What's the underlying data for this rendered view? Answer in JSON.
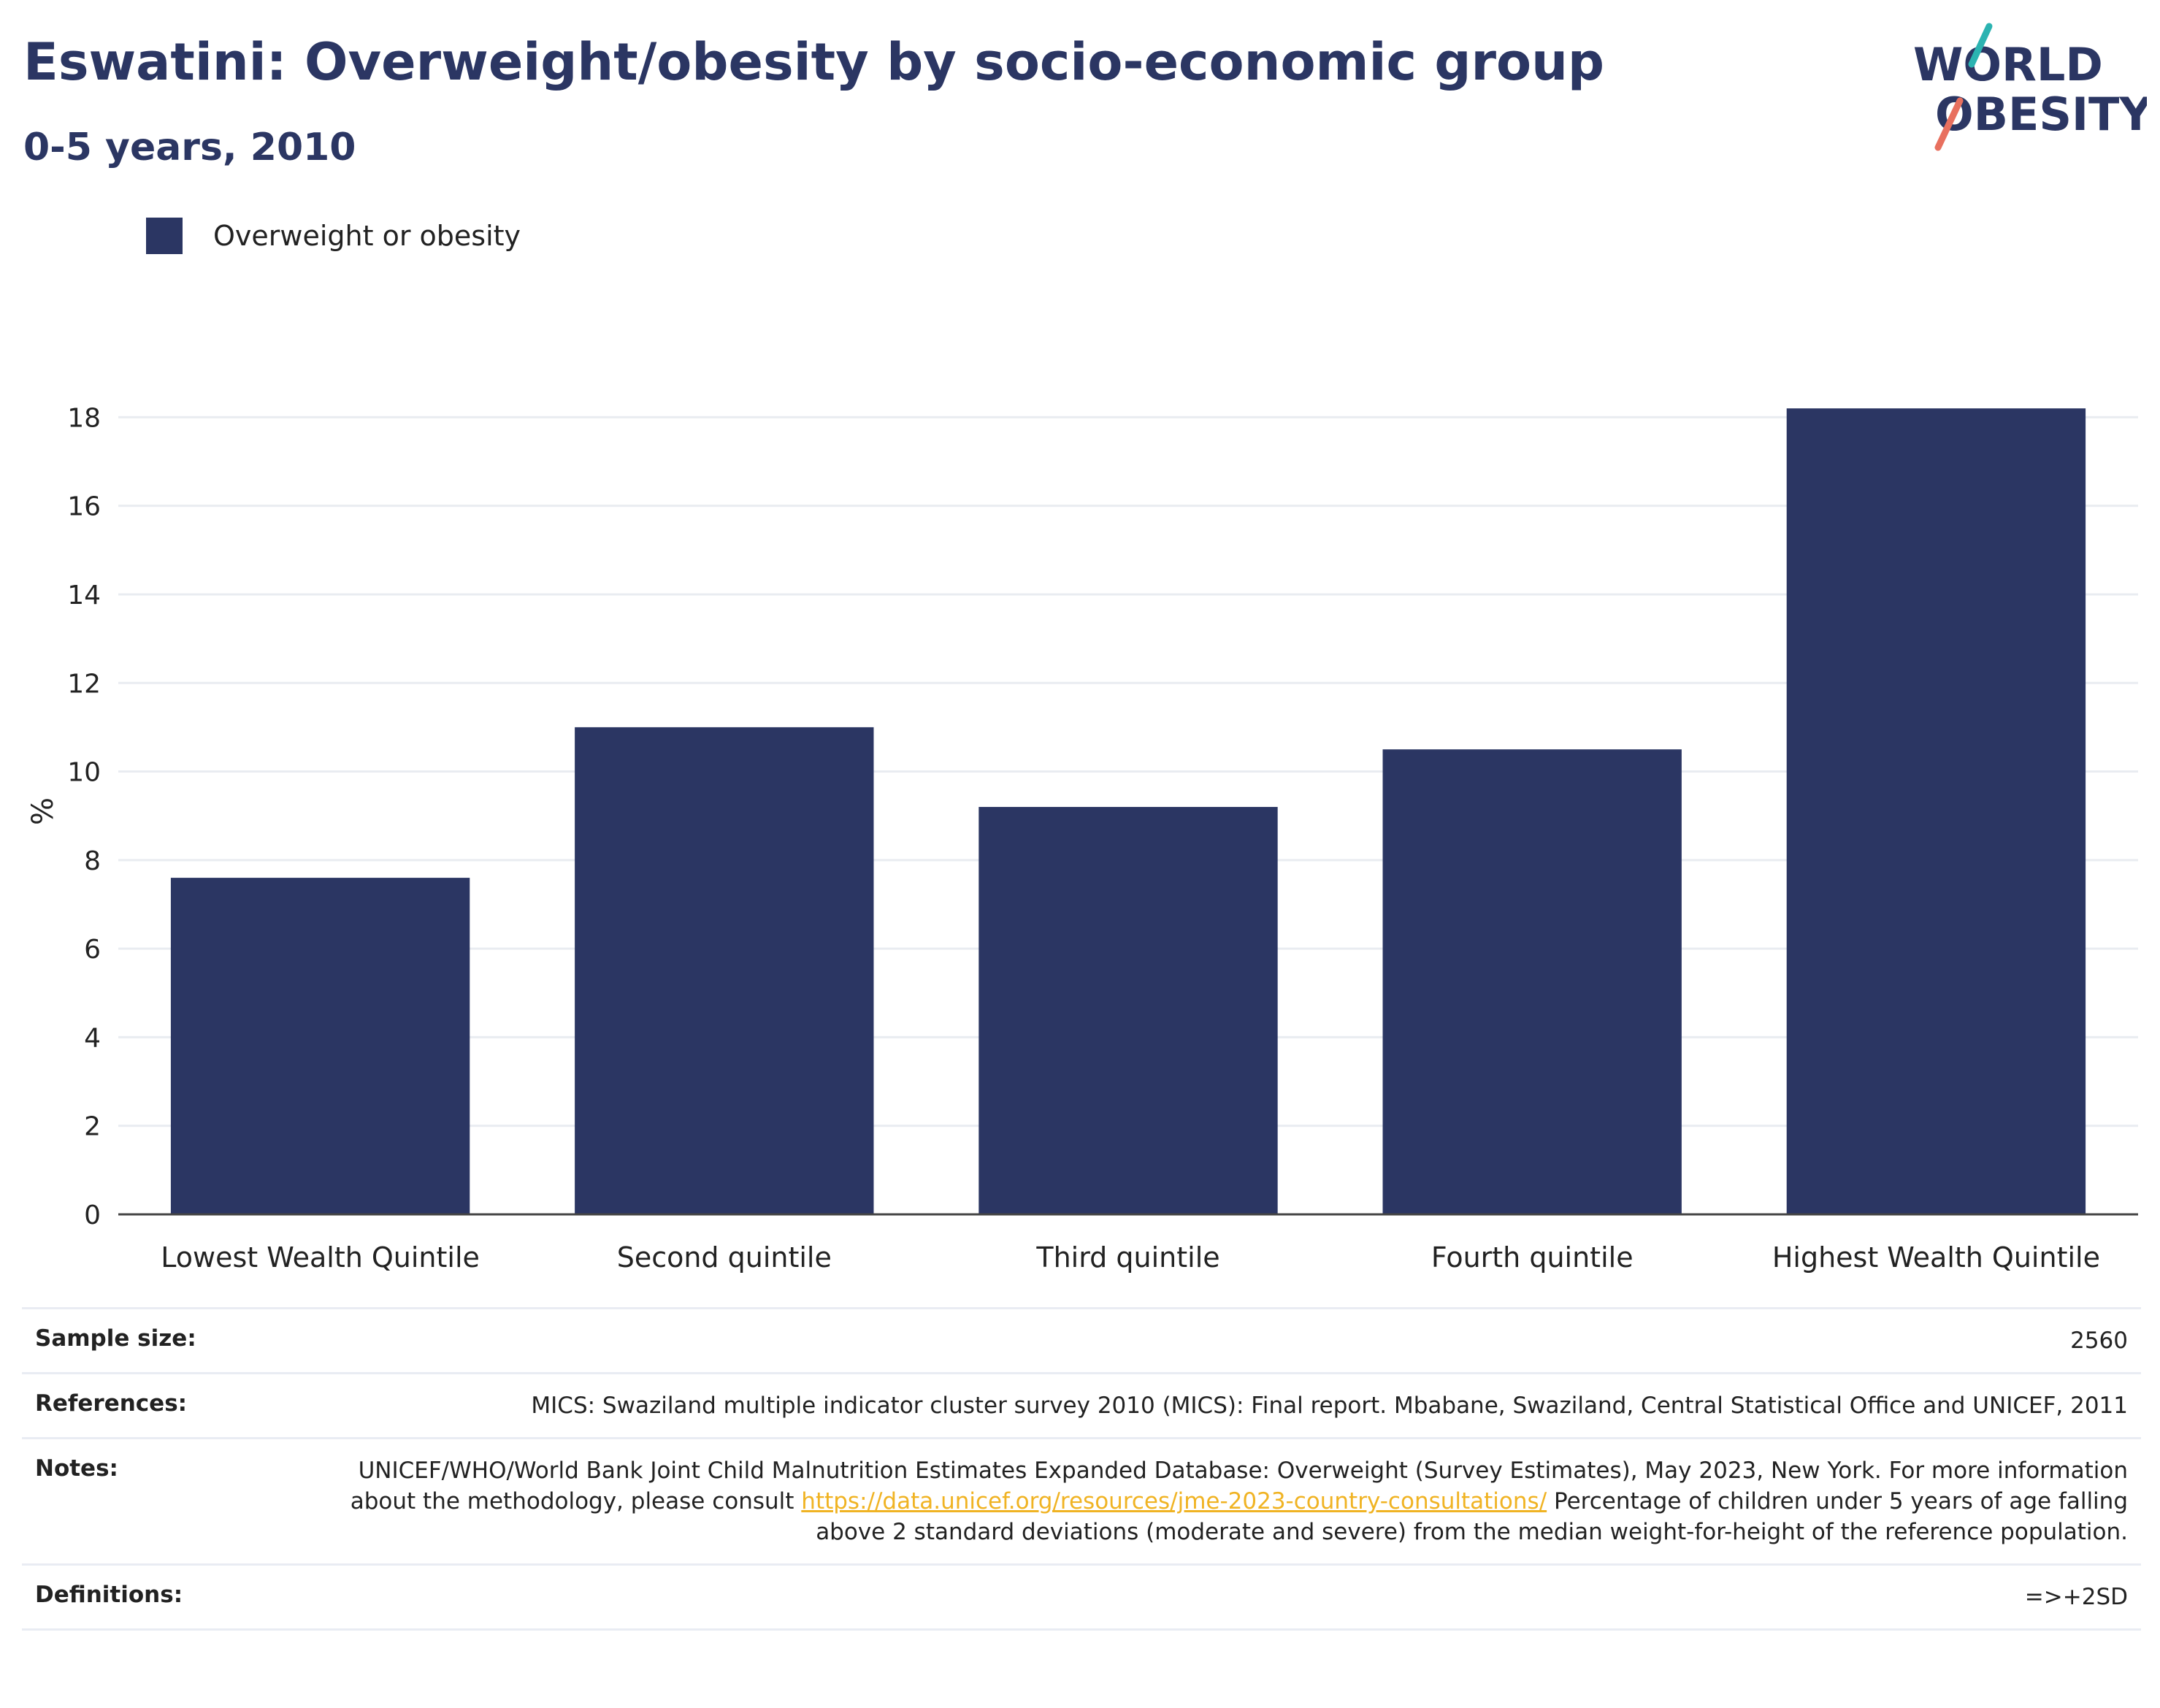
{
  "header": {
    "title": "Eswatini: Overweight/obesity by socio-economic group",
    "subtitle": "0-5 years, 2010"
  },
  "logo": {
    "line1": "WORLD",
    "line2": "OBESITY",
    "colors": {
      "navy": "#2b3663",
      "teal": "#2bb3b1",
      "coral": "#e8705f"
    }
  },
  "legend": {
    "label": "Overweight or obesity",
    "color": "#2b3663"
  },
  "chart_data": {
    "type": "bar",
    "categories": [
      "Lowest Wealth Quintile",
      "Second quintile",
      "Third quintile",
      "Fourth quintile",
      "Highest Wealth Quintile"
    ],
    "series": [
      {
        "name": "Overweight or obesity",
        "values": [
          7.6,
          11.0,
          9.2,
          10.5,
          18.2
        ],
        "color": "#2b3663"
      }
    ],
    "ylabel": "%",
    "xlabel": "",
    "ylim": [
      0,
      18.6
    ],
    "yticks": [
      0,
      2,
      4,
      6,
      8,
      10,
      12,
      14,
      16,
      18
    ],
    "grid": true,
    "legend_position": "top-left"
  },
  "info": {
    "sample_size": {
      "label": "Sample size:",
      "value": "2560"
    },
    "references": {
      "label": "References:",
      "value": "MICS: Swaziland multiple indicator cluster survey 2010 (MICS): Final report. Mbabane, Swaziland, Central Statistical Office and UNICEF, 2011"
    },
    "notes": {
      "label": "Notes:",
      "text_before": "UNICEF/WHO/World Bank Joint Child Malnutrition Estimates Expanded Database: Overweight (Survey Estimates), May 2023, New York. For more information about the methodology, please consult ",
      "link": "https://data.unicef.org/resources/jme-2023-country-consultations/",
      "text_after": " Percentage of children under 5 years of age falling above 2 standard deviations (moderate and severe) from the median weight-for-height of the reference population."
    },
    "definitions": {
      "label": "Definitions:",
      "value": "=>+2SD"
    }
  }
}
